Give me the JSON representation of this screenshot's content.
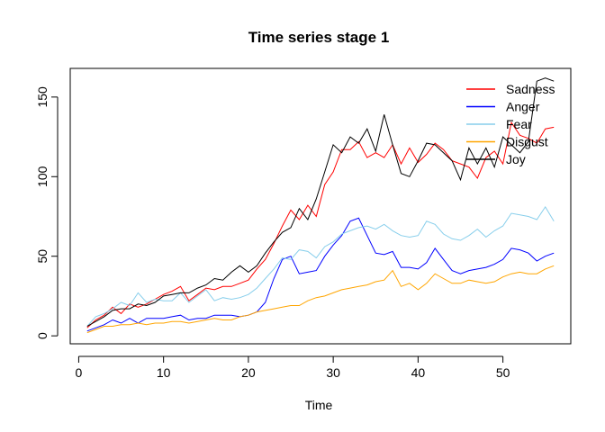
{
  "chart_data": {
    "type": "line",
    "title": "Time series stage 1",
    "xlabel": "Time",
    "ylabel": "",
    "xlim": [
      -1,
      58
    ],
    "ylim": [
      -5,
      168
    ],
    "xticks": [
      0,
      10,
      20,
      30,
      40,
      50
    ],
    "yticks": [
      0,
      50,
      100,
      150
    ],
    "legend_position": "top-right",
    "grid": false,
    "x": [
      1,
      2,
      3,
      4,
      5,
      6,
      7,
      8,
      9,
      10,
      11,
      12,
      13,
      14,
      15,
      16,
      17,
      18,
      19,
      20,
      21,
      22,
      23,
      24,
      25,
      26,
      27,
      28,
      29,
      30,
      31,
      32,
      33,
      34,
      35,
      36,
      37,
      38,
      39,
      40,
      41,
      42,
      43,
      44,
      45,
      46,
      47,
      48,
      49,
      50,
      51,
      52,
      53,
      54,
      55,
      56
    ],
    "series": [
      {
        "name": "Sadness",
        "color": "#ff0000",
        "values": [
          5,
          10,
          13,
          18,
          14,
          20,
          18,
          20,
          23,
          26,
          28,
          31,
          22,
          26,
          30,
          29,
          31,
          31,
          33,
          35,
          42,
          48,
          58,
          69,
          79,
          73,
          82,
          75,
          95,
          103,
          117,
          117,
          122,
          112,
          115,
          112,
          120,
          108,
          118,
          109,
          114,
          121,
          117,
          110,
          108,
          106,
          99,
          112,
          116,
          108,
          134,
          126,
          124,
          121,
          130,
          131
        ]
      },
      {
        "name": "Anger",
        "color": "#0000ff",
        "values": [
          3,
          5,
          7,
          10,
          8,
          11,
          8,
          11,
          11,
          11,
          12,
          13,
          10,
          11,
          11,
          13,
          13,
          13,
          12,
          13,
          15,
          21,
          36,
          48,
          50,
          39,
          40,
          41,
          50,
          57,
          63,
          72,
          74,
          63,
          52,
          51,
          53,
          43,
          43,
          42,
          46,
          55,
          48,
          41,
          39,
          41,
          42,
          43,
          45,
          48,
          55,
          54,
          52,
          47,
          50,
          52
        ]
      },
      {
        "name": "Fear",
        "color": "#87ceeb",
        "values": [
          6,
          12,
          14,
          17,
          21,
          19,
          27,
          21,
          23,
          22,
          22,
          27,
          21,
          25,
          29,
          22,
          24,
          23,
          24,
          26,
          30,
          36,
          42,
          49,
          48,
          54,
          53,
          49,
          56,
          59,
          64,
          66,
          68,
          69,
          67,
          70,
          66,
          63,
          62,
          63,
          72,
          70,
          64,
          61,
          60,
          63,
          67,
          62,
          66,
          69,
          77,
          76,
          75,
          73,
          81,
          72
        ]
      },
      {
        "name": "Disgust",
        "color": "#ffa500",
        "values": [
          2,
          4,
          6,
          6,
          7,
          7,
          8,
          7,
          8,
          8,
          9,
          9,
          8,
          9,
          10,
          11,
          10,
          10,
          12,
          13,
          15,
          16,
          17,
          18,
          19,
          19,
          22,
          24,
          25,
          27,
          29,
          30,
          31,
          32,
          34,
          35,
          41,
          31,
          33,
          29,
          33,
          39,
          36,
          33,
          33,
          35,
          34,
          33,
          34,
          37,
          39,
          40,
          39,
          39,
          42,
          44
        ]
      },
      {
        "name": "Joy",
        "color": "#000000",
        "values": [
          6,
          9,
          12,
          16,
          17,
          17,
          20,
          19,
          21,
          25,
          26,
          27,
          27,
          30,
          32,
          36,
          35,
          40,
          44,
          40,
          44,
          52,
          59,
          65,
          68,
          80,
          73,
          86,
          103,
          120,
          115,
          125,
          121,
          130,
          116,
          139,
          120,
          102,
          100,
          110,
          121,
          120,
          115,
          110,
          98,
          118,
          108,
          118,
          106,
          125,
          120,
          115,
          122,
          160,
          162,
          160
        ]
      }
    ]
  }
}
